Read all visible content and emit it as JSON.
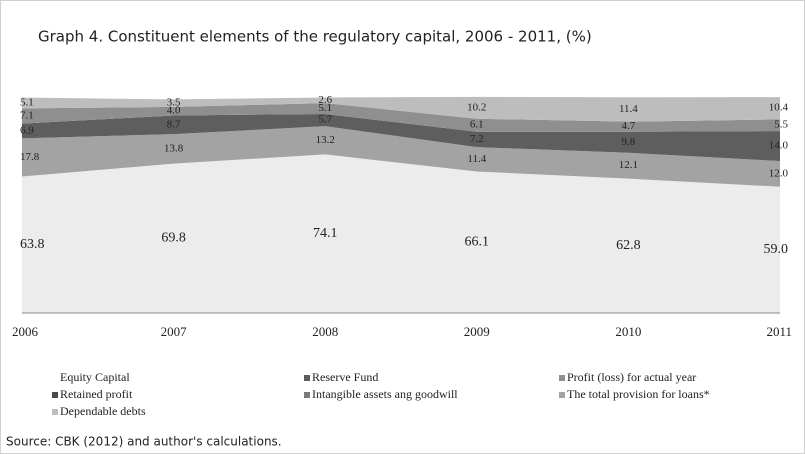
{
  "chart_data": {
    "type": "stacked_area",
    "title": "Graph 4. Constituent elements of the regulatory capital, 2006  - 2011,  (%)",
    "source": "Source: CBK (2012) and author's calculations.",
    "categories": [
      "2006",
      "2007",
      "2008",
      "2009",
      "2010",
      "2011"
    ],
    "ylim": [
      0,
      100
    ],
    "series": [
      {
        "name": "Equity Capital",
        "color": "#ececec",
        "values": [
          63.8,
          69.8,
          74.1,
          66.1,
          62.8,
          59.0
        ],
        "value_labels": [
          "63.8",
          "69.8",
          "74.1",
          "66.1",
          "62.8",
          "59.0"
        ]
      },
      {
        "name": "The total provision for loans*",
        "color": "#a3a3a3",
        "values": [
          17.8,
          13.8,
          13.2,
          11.4,
          12.1,
          12.0
        ],
        "value_labels": [
          "17.8",
          "13.8",
          "13.2",
          "11.4",
          "12.1",
          "12.0"
        ]
      },
      {
        "name": "Reserve Fund",
        "color": "#5e5e5e",
        "values": [
          6.9,
          8.7,
          5.7,
          7.2,
          9.8,
          14.0
        ],
        "value_labels": [
          "6.9",
          "8.7",
          "5.7",
          "7.2",
          "9.8",
          "14.0"
        ]
      },
      {
        "name": "Profit (loss) for actual year",
        "color": "#8f8f8f",
        "values": [
          7.1,
          4.0,
          5.1,
          6.1,
          4.7,
          5.5
        ],
        "value_labels": [
          "7.1",
          "4.0",
          "5.1",
          "6.1",
          "4.7",
          "5.5"
        ]
      },
      {
        "name": "Dependable debts",
        "color": "#bdbdbd",
        "values": [
          5.1,
          3.5,
          2.6,
          10.2,
          11.4,
          10.4
        ],
        "value_labels": [
          "5.1",
          "3.5",
          "2.6",
          "10.2",
          "11.4",
          "10.4"
        ]
      },
      {
        "name": "Retained profit",
        "color": "#4a4a4a",
        "values": [
          null,
          null,
          null,
          null,
          null,
          null
        ]
      },
      {
        "name": "Intangible assets ang goodwill",
        "color": "#7a7a7a",
        "values": [
          null,
          null,
          null,
          null,
          null,
          null
        ]
      }
    ],
    "legend_order": [
      0,
      2,
      3,
      5,
      6,
      1,
      4
    ]
  }
}
